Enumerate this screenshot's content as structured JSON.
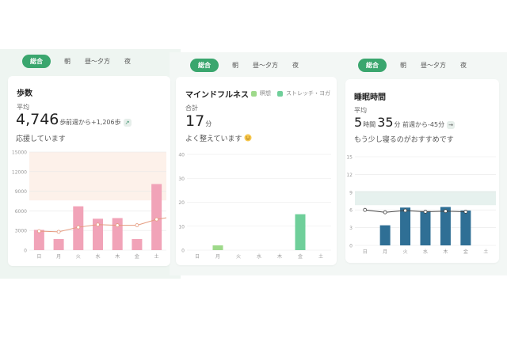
{
  "colors": {
    "accent": "#3aa66e",
    "steps_bar": "#f1a3b8",
    "steps_line": "#e59a7e",
    "mind_meditation": "#9ed98a",
    "mind_stretch": "#6fcf9a",
    "sleep_bar": "#2f6f95",
    "sleep_line": "#444444"
  },
  "tabs": [
    "総合",
    "朝",
    "昼〜夕方",
    "夜"
  ],
  "steps": {
    "title": "歩数",
    "avg_label": "平均",
    "value": "4,746",
    "unit": "歩",
    "delta": "前週から+1,206歩",
    "delta_icon": "arrow-up-right-icon",
    "note": "応援しています"
  },
  "mindfulness": {
    "title": "マインドフルネス",
    "legend": [
      {
        "label": "瞑想",
        "color": "#9ed98a"
      },
      {
        "label": "ストレッチ・ヨガ",
        "color": "#6fcf9a"
      }
    ],
    "total_label": "合計",
    "value": "17",
    "unit": "分",
    "note": "よく整えています",
    "note_icon": "smile-emoji-icon"
  },
  "sleep": {
    "title": "睡眠時間",
    "avg_label": "平均",
    "hours": "5",
    "hours_unit": "時間",
    "minutes": "35",
    "minutes_unit": "分",
    "delta": "前週から-45分",
    "delta_icon": "arrow-right-icon",
    "note": "もう少し寝るのがおすすめです"
  },
  "chart_data": [
    {
      "type": "bar",
      "categories": [
        "日",
        "月",
        "火",
        "水",
        "木",
        "金",
        "土"
      ],
      "ylim": [
        0,
        15000
      ],
      "yticks": [
        "0",
        "3000",
        "6000",
        "9000",
        "12000",
        "15000"
      ],
      "series": [
        {
          "values": [
            3100,
            1700,
            6700,
            4800,
            4900,
            1700,
            10100
          ]
        },
        {
          "values": [
            2900,
            2800,
            3500,
            3900,
            3800,
            3800,
            4700
          ]
        }
      ],
      "band": [
        7600,
        15000
      ]
    },
    {
      "type": "bar",
      "categories": [
        "日",
        "月",
        "火",
        "水",
        "木",
        "金",
        "土"
      ],
      "ylim": [
        0,
        40
      ],
      "yticks": [
        "0",
        "10",
        "20",
        "30",
        "40"
      ],
      "series": [
        {
          "name": "瞑想",
          "values": [
            0,
            2,
            0,
            0,
            0,
            0,
            0
          ]
        },
        {
          "name": "ストレッチ・ヨガ",
          "values": [
            0,
            0,
            0,
            0,
            0,
            15,
            0
          ]
        }
      ]
    },
    {
      "type": "bar",
      "categories": [
        "日",
        "月",
        "火",
        "水",
        "木",
        "金",
        "土"
      ],
      "ylim": [
        0,
        15
      ],
      "yticks": [
        "0",
        "3",
        "6",
        "9",
        "12",
        "15"
      ],
      "series": [
        {
          "values": [
            null,
            3.4,
            6.4,
            5.8,
            6.5,
            5.9,
            null
          ]
        },
        {
          "values": [
            6.0,
            5.6,
            5.9,
            5.7,
            5.8,
            5.7,
            null
          ]
        }
      ],
      "band": [
        6.8,
        9.2
      ]
    }
  ]
}
